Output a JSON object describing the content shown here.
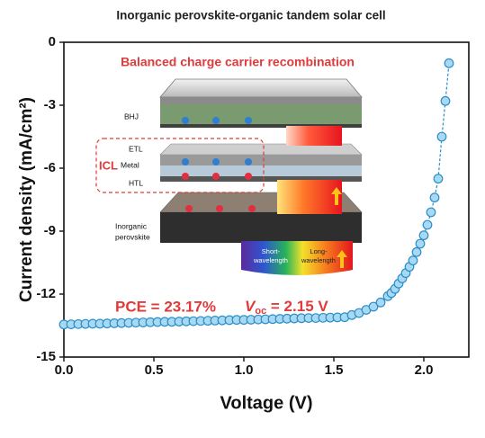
{
  "chart_data": {
    "type": "scatter",
    "title": "Inorganic perovskite-organic tandem solar cell",
    "xlabel": "Voltage (V)",
    "ylabel": "Current density (mA/cm²)",
    "xlim": [
      0,
      2.25
    ],
    "ylim": [
      -15,
      0
    ],
    "xticks": [
      {
        "value": 0,
        "label": "0.0"
      },
      0.5,
      {
        "value": 1,
        "label": "1.0"
      },
      1.5,
      {
        "value": 2,
        "label": "2.0"
      }
    ],
    "yticks": [
      0,
      -3,
      -6,
      -9,
      -12,
      -15
    ],
    "series": [
      {
        "color": "#2b8fc7",
        "fill": "#a9d9f2",
        "x": [
          0,
          0.04,
          0.08,
          0.12,
          0.16,
          0.2,
          0.24,
          0.28,
          0.32,
          0.36,
          0.4,
          0.44,
          0.48,
          0.52,
          0.56,
          0.6,
          0.64,
          0.68,
          0.72,
          0.76,
          0.8,
          0.84,
          0.88,
          0.92,
          0.96,
          1.0,
          1.04,
          1.08,
          1.12,
          1.16,
          1.2,
          1.24,
          1.28,
          1.32,
          1.36,
          1.4,
          1.44,
          1.48,
          1.52,
          1.56,
          1.6,
          1.64,
          1.68,
          1.72,
          1.76,
          1.8,
          1.82,
          1.84,
          1.86,
          1.88,
          1.9,
          1.92,
          1.94,
          1.96,
          1.98,
          2.0,
          2.02,
          2.04,
          2.06,
          2.08,
          2.1,
          2.12,
          2.14
        ],
        "values": [
          -13.45,
          -13.44,
          -13.43,
          -13.42,
          -13.41,
          -13.41,
          -13.4,
          -13.39,
          -13.38,
          -13.37,
          -13.36,
          -13.35,
          -13.34,
          -13.33,
          -13.32,
          -13.32,
          -13.31,
          -13.3,
          -13.29,
          -13.28,
          -13.27,
          -13.26,
          -13.25,
          -13.24,
          -13.23,
          -13.23,
          -13.22,
          -13.21,
          -13.2,
          -13.19,
          -13.18,
          -13.17,
          -13.16,
          -13.15,
          -13.14,
          -13.14,
          -13.13,
          -13.12,
          -13.11,
          -13.1,
          -13.0,
          -12.9,
          -12.75,
          -12.6,
          -12.4,
          -12.1,
          -11.95,
          -11.75,
          -11.5,
          -11.25,
          -11.0,
          -10.7,
          -10.4,
          -10.0,
          -9.6,
          -9.2,
          -8.7,
          -8.1,
          -7.4,
          -6.5,
          -4.5,
          -2.8,
          -1.0
        ]
      }
    ],
    "annotations": {
      "headline": "Balanced charge carrier recombination",
      "pce": "PCE = 23.17%",
      "voc_symbol": "V",
      "voc_subscript": "oc",
      "voc_value": " = 2.15 V"
    },
    "inset": {
      "bhj": "BHJ",
      "etl": "ETL",
      "metal": "Metal",
      "htl": "HTL",
      "icl": "ICL",
      "perovskite": [
        "Inorganic",
        "perovskite"
      ],
      "short_wavelength": [
        "Short-",
        "wavelength"
      ],
      "long_wavelength": [
        "Long-",
        "wavelength"
      ]
    }
  }
}
